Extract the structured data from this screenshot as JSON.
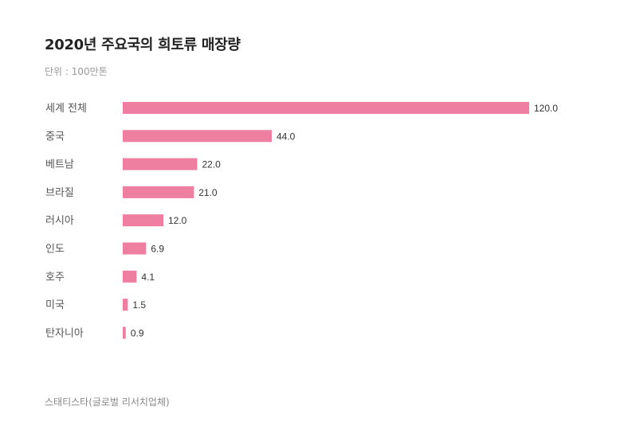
{
  "chart_data": {
    "type": "bar",
    "orientation": "horizontal",
    "title": "2020년 주요국의 희토류 매장량",
    "subtitle": "단위 : 100만톤",
    "categories": [
      "세계 전체",
      "중국",
      "베트남",
      "브라질",
      "러시아",
      "인도",
      "호주",
      "미국",
      "탄자니아"
    ],
    "values": [
      120.0,
      44.0,
      22.0,
      21.0,
      12.0,
      6.9,
      4.1,
      1.5,
      0.9
    ],
    "value_labels": [
      "120.0",
      "44.0",
      "22.0",
      "21.0",
      "12.0",
      "6.9",
      "4.1",
      "1.5",
      "0.9"
    ],
    "xlim": [
      0,
      120
    ],
    "grid": false,
    "bar_color": "#ee7fa0",
    "source": "스태티스타(글로벌 리서치업체)"
  }
}
